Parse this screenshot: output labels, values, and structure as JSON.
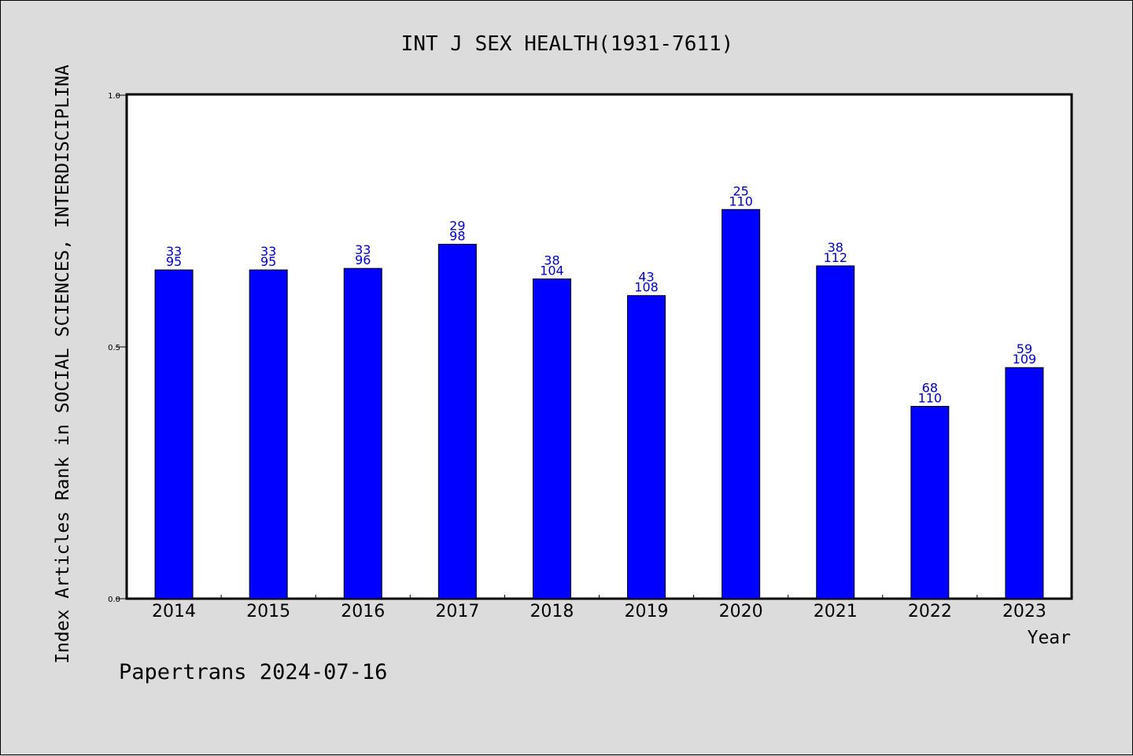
{
  "chart_data": {
    "type": "bar",
    "title": "INT J SEX HEALTH(1931-7611)",
    "xlabel": "Year",
    "ylabel": "Index Articles Rank in SOCIAL SCIENCES, INTERDISCIPLINA",
    "categories": [
      "2014",
      "2015",
      "2016",
      "2017",
      "2018",
      "2019",
      "2020",
      "2021",
      "2022",
      "2023"
    ],
    "values": [
      0.653,
      0.653,
      0.656,
      0.704,
      0.635,
      0.602,
      0.773,
      0.661,
      0.382,
      0.459
    ],
    "labels_top": [
      "33",
      "33",
      "33",
      "29",
      "38",
      "43",
      "25",
      "38",
      "68",
      "59"
    ],
    "labels_bottom": [
      "95",
      "95",
      "96",
      "98",
      "104",
      "108",
      "110",
      "112",
      "110",
      "109"
    ],
    "ylim": [
      0.0,
      1.0
    ],
    "yticks": [
      "0.0",
      "0.5",
      "1.0"
    ],
    "grid": false,
    "bar_color": "#0000ff",
    "label_color": "#0000cc"
  },
  "footer": "Papertrans 2024-07-16"
}
